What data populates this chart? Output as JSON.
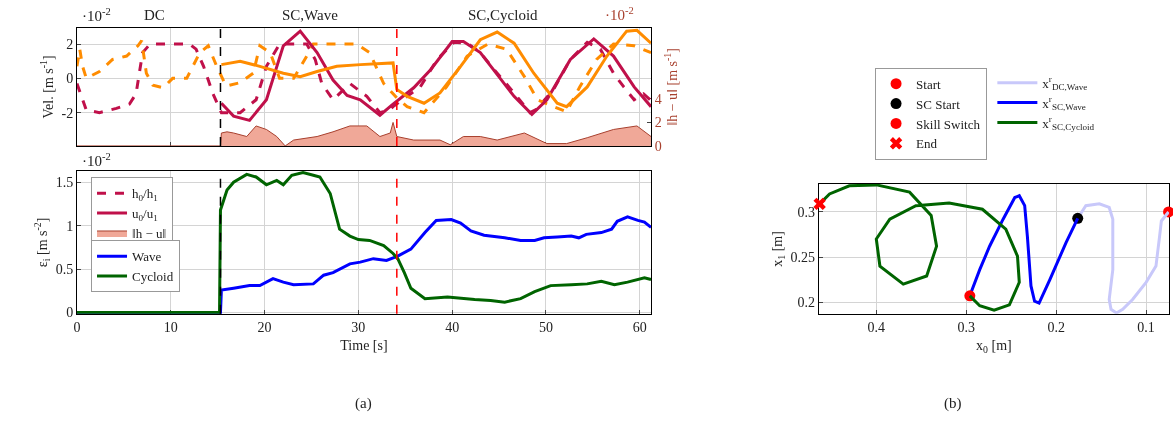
{
  "chart_data": [
    {
      "type": "line",
      "ylabel": "Vel. [m s$^{-1}$]",
      "y2label": "‖h − u‖ [m s$^{-1}$]",
      "annotations": [
        "·10$^{-2}$",
        "DC",
        "SC,Wave",
        "SC,Cycloid",
        "·10$^{-2}$"
      ],
      "xlim": [
        0,
        61.2
      ],
      "xticks": [
        {
          "value": 0,
          "label": null
        },
        {
          "value": 10,
          "label": null
        },
        {
          "value": 20,
          "label": null
        },
        {
          "value": 30,
          "label": null
        },
        {
          "value": 40,
          "label": null
        },
        {
          "value": 50,
          "label": null
        },
        {
          "value": 60,
          "label": null
        }
      ],
      "ylim": [
        -3.94,
        2.94
      ],
      "yticks": [
        -2,
        0,
        2
      ],
      "y2lim": [
        0,
        10.04
      ],
      "y2ticks": [
        0,
        2,
        4
      ],
      "grid": true,
      "tick_labels": "y",
      "marker": "none",
      "legend": "bottom left",
      "ref_lines": [
        {
          "axis": "x",
          "value": 15.3,
          "color": "#000000",
          "line_style": "dashed"
        },
        {
          "axis": "x",
          "value": 34.1,
          "color": "#ff0000",
          "line_style": "dashed"
        }
      ],
      "series": [
        {
          "name": "h$_{0}$/h$_{1}$",
          "color": "#c0104a",
          "line_style": "dashed",
          "x": [
            0,
            1,
            2.4,
            4.2,
            5.6,
            6.3,
            7,
            7.8,
            12,
            12.7,
            13.5,
            14,
            14.5,
            15.4,
            17.4,
            19.1,
            20.2,
            21.6,
            24.5,
            25.4,
            26.1,
            27.3,
            29.1,
            30.9,
            32.3,
            33.4,
            33.7,
            35.2,
            36.6,
            38.4,
            40.2,
            41.6,
            43,
            44.8,
            46.6,
            48.3,
            49,
            50.8,
            52.6,
            54.4,
            55.8,
            57.2,
            58.3,
            59.4,
            60.4,
            61.1
          ],
          "values": [
            -0.3,
            -1.85,
            -2,
            -1.75,
            -1.5,
            -0.9,
            1.5,
            2,
            2,
            1.7,
            0.7,
            -0.1,
            -0.9,
            -2,
            -2,
            -1.25,
            0.7,
            2,
            2,
            1.1,
            -0.3,
            -1.25,
            -0.3,
            -1.05,
            -2,
            -1.8,
            -1.65,
            -1.05,
            -0.5,
            1.1,
            2.1,
            2.05,
            1.5,
            0.3,
            -0.85,
            -2,
            -1.8,
            -0.65,
            1.1,
            2.1,
            1.7,
            0.3,
            -0.5,
            -1.25,
            -0.9,
            -1.25
          ]
        },
        {
          "color": "#ff8c00",
          "line_style": "dashed",
          "x": [
            0,
            0.3,
            0.6,
            1,
            2.4,
            3.8,
            5.3,
            6.5,
            6.9,
            7.4,
            8.1,
            9.2,
            10.2,
            11.7,
            13.1,
            14,
            14.9,
            15.9,
            17.4,
            18.8,
            19.5,
            20.6,
            21.6,
            23.1,
            24.5,
            25.2,
            29.8,
            31.2,
            32.7,
            33.7,
            34.2,
            35.2,
            37,
            39.4,
            41.6,
            43.8,
            45.8,
            47.7,
            49.1,
            50.8,
            52.2,
            53.6,
            55.4,
            57.2,
            59.4,
            61.2
          ],
          "values": [
            0.7,
            1.7,
            0.7,
            0,
            0.4,
            1.1,
            1.3,
            1.9,
            2.2,
            0.3,
            -0.4,
            -0.55,
            0,
            0,
            1.5,
            1.9,
            0.7,
            -0.45,
            -0.25,
            0.3,
            1.9,
            1.5,
            0,
            0,
            1.3,
            2,
            2,
            1.5,
            -0.3,
            -0.9,
            -1.2,
            -1.65,
            -2,
            -0.5,
            1.3,
            2,
            1.7,
            0.1,
            -1.25,
            -1.65,
            -1.95,
            -0.5,
            1.1,
            2,
            1.9,
            1.5
          ]
        },
        {
          "name": "u$_{0}$/u$_{1}$",
          "color": "#c0104a",
          "line_style": "solid",
          "x": [
            15.4,
            16.7,
            18.4,
            20.2,
            22,
            23.8,
            25.6,
            27.3,
            28.8,
            30.2,
            32.3,
            33.6,
            35.9,
            37.7,
            40,
            41.2,
            43,
            46.6,
            48.5,
            50.1,
            52.6,
            55.1,
            57.2,
            59.4,
            61.2
          ],
          "values": [
            -1.45,
            -2.2,
            -2.45,
            -1.25,
            1.9,
            2.75,
            1.5,
            -0.1,
            -1,
            -1.25,
            -2.15,
            -1.55,
            -0.55,
            0.5,
            2.15,
            2.15,
            1.5,
            -1.05,
            -2.1,
            -1.25,
            1.1,
            2.3,
            1.3,
            -0.5,
            -1.65
          ]
        },
        {
          "color": "#ff8c00",
          "line_style": "solid",
          "x": [
            15.4,
            17.4,
            19.5,
            22,
            23.8,
            25.6,
            27.7,
            30.2,
            33.7,
            34.1,
            35.2,
            37,
            38.7,
            40.9,
            43,
            44.8,
            46.6,
            48.7,
            51.2,
            52.2,
            54.4,
            56.5,
            58.6,
            59.7,
            61.2
          ],
          "values": [
            0.8,
            1,
            0.7,
            0.3,
            0.1,
            0.4,
            0.7,
            0.8,
            0.9,
            -0.65,
            -1.05,
            -1.45,
            -0.85,
            0.7,
            2.25,
            2.7,
            2.05,
            0.3,
            -1.45,
            -1.65,
            -0.5,
            1.3,
            2.75,
            2.8,
            2.05
          ]
        },
        {
          "name": "‖h − u‖",
          "type": "area",
          "axis": "y2",
          "color": "#f0a898",
          "x": [
            0,
            15.3,
            15.4,
            16,
            16.7,
            18.1,
            19.1,
            20.2,
            21.3,
            22.2,
            23.1,
            25.6,
            27.3,
            29.1,
            30.9,
            32.3,
            33.4,
            33.7,
            34.1,
            35.9,
            38.7,
            39.8,
            41.2,
            43,
            44.8,
            47.7,
            50.1,
            52.2,
            54.4,
            57.2,
            59.7,
            61.2
          ],
          "values": [
            0,
            0,
            1.1,
            1.2,
            1.1,
            0.8,
            1.7,
            1.4,
            0.8,
            0,
            0.5,
            0.8,
            1.2,
            1.7,
            1.7,
            0.8,
            1.1,
            2,
            0.8,
            0.5,
            0.5,
            0.1,
            0.8,
            0.8,
            0.5,
            1.1,
            0.2,
            0.2,
            0.7,
            1.4,
            1.7,
            0.8
          ]
        }
      ]
    },
    {
      "type": "line",
      "xlabel": "Time [s]",
      "ylabel": "ε$_{i}$ [m s$^{-2}$]",
      "annotations": [
        "·10$^{-2}$",
        "(a)"
      ],
      "xlim": [
        0,
        61.2
      ],
      "xticks": [
        0,
        10,
        20,
        30,
        40,
        50,
        60
      ],
      "ylim": [
        -0.015,
        1.63
      ],
      "yticks": [
        0,
        0.5,
        1,
        1.5
      ],
      "grid": true,
      "marker": "none",
      "legend": "left",
      "ref_lines": [
        {
          "axis": "x",
          "value": 15.3,
          "color": "#000000",
          "line_style": "dashed"
        },
        {
          "axis": "x",
          "value": 34.1,
          "color": "#ff0000",
          "line_style": "dashed"
        }
      ],
      "series": [
        {
          "name": "Wave",
          "color": "#0000ff",
          "x": [
            0,
            15.3,
            15.4,
            16.7,
            18.4,
            19.5,
            20.9,
            22,
            23.1,
            25.2,
            26.3,
            27.3,
            29.1,
            30.2,
            31.6,
            33,
            34.2,
            35.6,
            37.1,
            38.3,
            39.9,
            40.9,
            42,
            43.4,
            45.6,
            47.3,
            48.8,
            49.8,
            51.2,
            52.7,
            53.5,
            54.3,
            55.9,
            57,
            57.6,
            58.7,
            59.8,
            60.5,
            61.2
          ],
          "values": [
            0,
            0,
            0.26,
            0.28,
            0.31,
            0.31,
            0.39,
            0.35,
            0.32,
            0.33,
            0.43,
            0.46,
            0.56,
            0.58,
            0.62,
            0.6,
            0.65,
            0.73,
            0.92,
            1.06,
            1.07,
            1.03,
            0.94,
            0.89,
            0.86,
            0.83,
            0.83,
            0.86,
            0.87,
            0.88,
            0.86,
            0.9,
            0.92,
            0.96,
            1.05,
            1.1,
            1.06,
            1.04,
            0.98
          ]
        },
        {
          "name": "Cycloid",
          "color": "#006400",
          "x": [
            0,
            15.2,
            15.3,
            16,
            16.7,
            18.1,
            19.1,
            20.2,
            21.3,
            22,
            22.9,
            24.1,
            25.2,
            25.9,
            27,
            28,
            29.1,
            30,
            31.2,
            32.7,
            33.7,
            34.2,
            34.9,
            35.6,
            37.1,
            39.5,
            42.4,
            44.1,
            45.6,
            47.3,
            48.8,
            50.5,
            52.7,
            54.4,
            55.9,
            57.3,
            58.7,
            60.5,
            61.2
          ],
          "values": [
            0,
            0,
            1.18,
            1.41,
            1.5,
            1.59,
            1.56,
            1.47,
            1.52,
            1.47,
            1.58,
            1.61,
            1.58,
            1.56,
            1.37,
            0.96,
            0.88,
            0.84,
            0.83,
            0.77,
            0.68,
            0.62,
            0.46,
            0.28,
            0.16,
            0.18,
            0.15,
            0.14,
            0.12,
            0.16,
            0.24,
            0.31,
            0.32,
            0.33,
            0.36,
            0.32,
            0.35,
            0.4,
            0.38
          ]
        }
      ]
    },
    {
      "type": "line",
      "xlabel": "x$_{0}$ [m]",
      "ylabel": "x$_{1}$ [m]",
      "annotations": [
        "(b)"
      ],
      "xlim": [
        0.464,
        0.0745
      ],
      "xticks": [
        0.4,
        0.3,
        0.2,
        0.1
      ],
      "ylim": [
        0.187,
        0.331
      ],
      "yticks": [
        0.2,
        0.25,
        0.3
      ],
      "grid": true,
      "marker": "none",
      "legend": "top",
      "series": [
        {
          "name": "Start",
          "type": "scatter",
          "marker": "circle",
          "color": "#ff0000",
          "x": [
            0.075
          ],
          "values": [
            0.3
          ]
        },
        {
          "name": "x$^{r}$$_{DC,Wave}$",
          "color": "#c8c8fa",
          "x": [
            0.075,
            0.083,
            0.085,
            0.089,
            0.1,
            0.115,
            0.126,
            0.133,
            0.139,
            0.141,
            0.137,
            0.137,
            0.141,
            0.152,
            0.167,
            0.176
          ],
          "values": [
            0.3,
            0.29,
            0.273,
            0.24,
            0.222,
            0.203,
            0.192,
            0.188,
            0.192,
            0.203,
            0.236,
            0.292,
            0.305,
            0.309,
            0.307,
            0.293
          ]
        },
        {
          "name": "SC Start",
          "type": "scatter",
          "marker": "circle",
          "color": "#000000",
          "x": [
            0.176
          ],
          "values": [
            0.293
          ]
        },
        {
          "name": "x$^{r}$$_{SC,Wave}$",
          "color": "#0000ff",
          "x": [
            0.176,
            0.189,
            0.207,
            0.219,
            0.224,
            0.228,
            0.232,
            0.235,
            0.241,
            0.246,
            0.259,
            0.274,
            0.285,
            0.296
          ],
          "values": [
            0.293,
            0.266,
            0.225,
            0.199,
            0.201,
            0.218,
            0.273,
            0.307,
            0.318,
            0.316,
            0.292,
            0.262,
            0.236,
            0.207
          ]
        },
        {
          "name": "Skill Switch",
          "type": "scatter",
          "marker": "circle",
          "color": "#ff0000",
          "x": [
            0.296
          ],
          "values": [
            0.207
          ]
        },
        {
          "name": "x$^{r}$$_{SC,Cycloid}$",
          "color": "#006400",
          "x": [
            0.296,
            0.285,
            0.269,
            0.252,
            0.241,
            0.243,
            0.256,
            0.282,
            0.319,
            0.356,
            0.385,
            0.4,
            0.396,
            0.37,
            0.344,
            0.333,
            0.339,
            0.363,
            0.4,
            0.43,
            0.452,
            0.463
          ],
          "values": [
            0.207,
            0.196,
            0.191,
            0.197,
            0.222,
            0.251,
            0.281,
            0.303,
            0.31,
            0.307,
            0.292,
            0.27,
            0.24,
            0.22,
            0.229,
            0.262,
            0.296,
            0.322,
            0.33,
            0.329,
            0.32,
            0.309
          ]
        },
        {
          "name": "End",
          "type": "scatter",
          "marker": "cross",
          "color": "#ff0000",
          "x": [
            0.463
          ],
          "values": [
            0.309
          ]
        }
      ]
    }
  ]
}
